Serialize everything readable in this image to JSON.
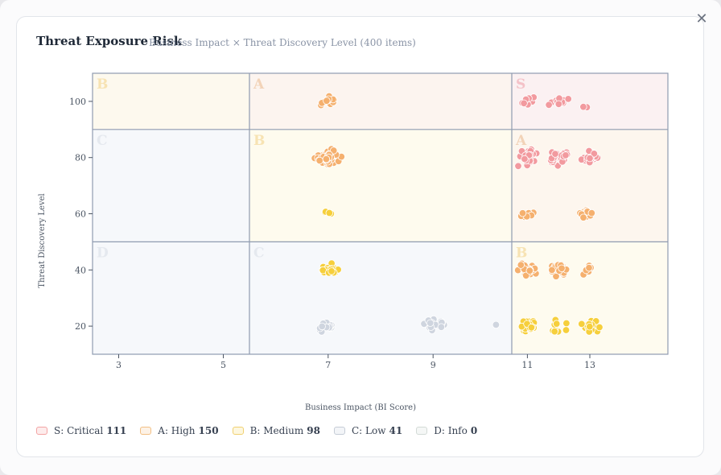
{
  "header": {
    "title": "Threat Exposure Risk",
    "subtitle": "Business Impact × Threat Discovery Level (400 items)",
    "close_icon": "close-icon"
  },
  "legend": [
    {
      "label": "S: Critical",
      "count": "111",
      "fill": "#fdecec",
      "stroke": "#f3a3a3"
    },
    {
      "label": "A: High",
      "count": "150",
      "fill": "#fdf2e6",
      "stroke": "#f2bf84"
    },
    {
      "label": "B: Medium",
      "count": "98",
      "fill": "#fdf7df",
      "stroke": "#f0d070"
    },
    {
      "label": "C: Low",
      "count": "41",
      "fill": "#f3f5f8",
      "stroke": "#c5ccd6"
    },
    {
      "label": "D: Info",
      "count": "0",
      "fill": "#f5f7f6",
      "stroke": "#d3dad6"
    }
  ],
  "chart_data": {
    "type": "scatter",
    "xlabel": "Business Impact (BI Score)",
    "ylabel": "Threat Discovery Level",
    "xlim": [
      2.5,
      15.5
    ],
    "ylim": [
      10,
      110
    ],
    "xticks": [
      3,
      5,
      7,
      9,
      11,
      13
    ],
    "yticks": [
      20,
      40,
      60,
      80,
      100
    ],
    "x_bands": [
      [
        2.5,
        5.5
      ],
      [
        5.5,
        10.5
      ],
      [
        10.5,
        15.5
      ]
    ],
    "y_bands": [
      [
        10,
        50
      ],
      [
        50,
        90
      ],
      [
        90,
        110
      ]
    ],
    "zones": [
      {
        "grade": "B",
        "x": [
          2.5,
          5.5
        ],
        "y": [
          90,
          110
        ],
        "fill": "#fdf9ee",
        "text": "#f7e3b3"
      },
      {
        "grade": "A",
        "x": [
          5.5,
          10.5
        ],
        "y": [
          90,
          110
        ],
        "fill": "#fcf4ef",
        "text": "#f2d3b8"
      },
      {
        "grade": "S",
        "x": [
          10.5,
          15.5
        ],
        "y": [
          90,
          110
        ],
        "fill": "#fbf1f2",
        "text": "#f4c2c8"
      },
      {
        "grade": "C",
        "x": [
          2.5,
          5.5
        ],
        "y": [
          50,
          90
        ],
        "fill": "#f6f8fb",
        "text": "#e5e9ef"
      },
      {
        "grade": "B",
        "x": [
          5.5,
          10.5
        ],
        "y": [
          50,
          90
        ],
        "fill": "#fefbee",
        "text": "#f7e3b3"
      },
      {
        "grade": "A",
        "x": [
          10.5,
          15.5
        ],
        "y": [
          50,
          90
        ],
        "fill": "#fdf6ee",
        "text": "#f2d3b8"
      },
      {
        "grade": "D",
        "x": [
          2.5,
          5.5
        ],
        "y": [
          10,
          50
        ],
        "fill": "#f6f8fb",
        "text": "#e5e9ef"
      },
      {
        "grade": "C",
        "x": [
          5.5,
          10.5
        ],
        "y": [
          10,
          50
        ],
        "fill": "#f6f8fb",
        "text": "#e5e9ef"
      },
      {
        "grade": "B",
        "x": [
          10.5,
          15.5
        ],
        "y": [
          10,
          50
        ],
        "fill": "#fefbef",
        "text": "#f7e3b3"
      }
    ],
    "series": [
      {
        "name": "S: Critical",
        "color": "#f29a9f",
        "stroke": "#ffffff",
        "clusters": [
          {
            "x": 11,
            "y": 100,
            "n": 10,
            "sx": 0.25,
            "sy": 1.5
          },
          {
            "x": 12,
            "y": 100,
            "n": 12,
            "sx": 0.25,
            "sy": 1.8
          },
          {
            "x": 12.9,
            "y": 98,
            "n": 2,
            "sx": 0.3,
            "sy": 0.3
          },
          {
            "x": 11,
            "y": 80,
            "n": 30,
            "sx": 0.22,
            "sy": 2.2
          },
          {
            "x": 12,
            "y": 80,
            "n": 38,
            "sx": 0.28,
            "sy": 2.2
          },
          {
            "x": 13,
            "y": 80,
            "n": 19,
            "sx": 0.22,
            "sy": 2.2
          }
        ]
      },
      {
        "name": "A: High",
        "color": "#f5b06e",
        "stroke": "#ffffff",
        "clusters": [
          {
            "x": 7,
            "y": 100,
            "n": 14,
            "sx": 0.14,
            "sy": 1.5
          },
          {
            "x": 11,
            "y": 60,
            "n": 9,
            "sx": 0.22,
            "sy": 1.5
          },
          {
            "x": 12.95,
            "y": 60,
            "n": 10,
            "sx": 0.22,
            "sy": 1.5
          },
          {
            "x": 11,
            "y": 40,
            "n": 24,
            "sx": 0.22,
            "sy": 1.8
          },
          {
            "x": 12,
            "y": 40,
            "n": 34,
            "sx": 0.25,
            "sy": 1.8
          },
          {
            "x": 12.95,
            "y": 40,
            "n": 6,
            "sx": 0.18,
            "sy": 2.0
          },
          {
            "x": 7,
            "y": 80,
            "n": 53,
            "sx": 0.2,
            "sy": 2.2
          }
        ]
      },
      {
        "name": "B: Medium",
        "color": "#f6cf3c",
        "stroke": "#ffffff",
        "clusters": [
          {
            "x": 7,
            "y": 60,
            "n": 4,
            "sx": 0.1,
            "sy": 1.8
          },
          {
            "x": 7,
            "y": 40,
            "n": 28,
            "sx": 0.15,
            "sy": 1.8
          },
          {
            "x": 11,
            "y": 20,
            "n": 34,
            "sx": 0.22,
            "sy": 1.8
          },
          {
            "x": 12,
            "y": 20,
            "n": 11,
            "sx": 0.25,
            "sy": 1.8
          },
          {
            "x": 13,
            "y": 20,
            "n": 21,
            "sx": 0.25,
            "sy": 1.8
          }
        ]
      },
      {
        "name": "C: Low",
        "color": "#cfd5df",
        "stroke": "#ffffff",
        "clusters": [
          {
            "x": 7,
            "y": 20,
            "n": 20,
            "sx": 0.15,
            "sy": 1.8
          },
          {
            "x": 9,
            "y": 20,
            "n": 20,
            "sx": 0.2,
            "sy": 1.8
          },
          {
            "x": 10.2,
            "y": 20.5,
            "n": 1,
            "sx": 0.0,
            "sy": 0.0
          }
        ]
      }
    ]
  }
}
